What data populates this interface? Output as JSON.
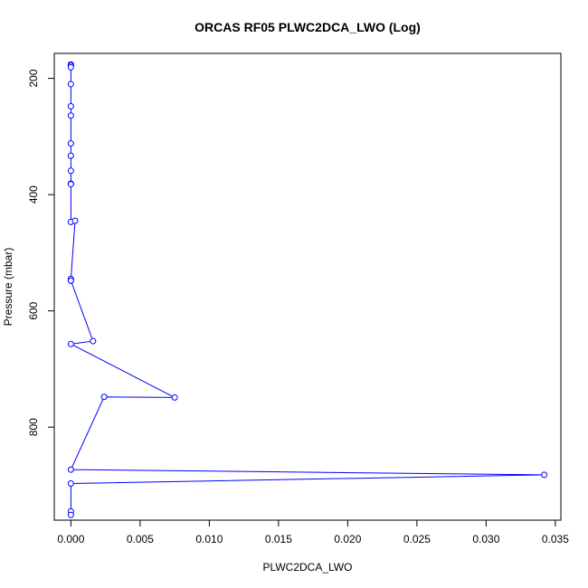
{
  "chart_data": {
    "type": "line",
    "title": "ORCAS RF05 PLWC2DCA_LWO (Log)",
    "xlabel": "PLWC2DCA_LWO",
    "ylabel": "Pressure (mbar)",
    "xlim": [
      -0.0012,
      0.0354
    ],
    "ylim": [
      960,
      157
    ],
    "y_inverted": true,
    "x_ticks": [
      0.0,
      0.005,
      0.01,
      0.015,
      0.02,
      0.025,
      0.03,
      0.035
    ],
    "x_tick_labels": [
      "0.000",
      "0.005",
      "0.010",
      "0.015",
      "0.020",
      "0.025",
      "0.030",
      "0.035"
    ],
    "y_ticks": [
      200,
      400,
      600,
      800
    ],
    "y_tick_labels": [
      "200",
      "400",
      "600",
      "800"
    ],
    "series": [
      {
        "color": "#0000ff",
        "x": [
          0.0,
          0.0,
          0.0,
          0.0,
          0.0,
          0.0,
          0.0,
          0.0,
          0.0,
          0.0,
          0.0,
          0.0,
          0.0003,
          0.0,
          0.0,
          0.0,
          0.0016,
          0.0,
          0.0075,
          0.0024,
          0.0,
          0.0342,
          0.0,
          0.0,
          0.0
        ],
        "y": [
          176,
          178,
          181,
          210,
          248,
          264,
          312,
          333,
          359,
          381,
          382,
          447,
          445,
          545,
          548,
          548,
          652,
          657,
          749,
          748,
          873,
          882,
          897,
          945,
          951
        ]
      }
    ]
  }
}
